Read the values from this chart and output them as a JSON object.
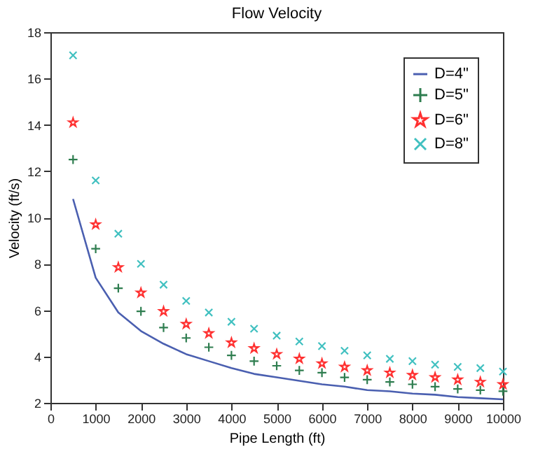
{
  "chart_data": {
    "type": "scatter",
    "title": "Flow Velocity",
    "xlabel": "Pipe Length (ft)",
    "ylabel": "Velocity (ft/s)",
    "x": [
      500,
      1000,
      1500,
      2000,
      2500,
      3000,
      3500,
      4000,
      4500,
      5000,
      5500,
      6000,
      6500,
      7000,
      7500,
      8000,
      8500,
      9000,
      9500,
      10000
    ],
    "series": [
      {
        "name": "D=4\"",
        "type": "line",
        "color": "#4a5fb0",
        "marker": "none",
        "values": [
          10.8,
          7.4,
          5.9,
          5.1,
          4.55,
          4.1,
          3.8,
          3.5,
          3.25,
          3.1,
          2.95,
          2.8,
          2.7,
          2.55,
          2.5,
          2.4,
          2.35,
          2.25,
          2.2,
          2.15
        ]
      },
      {
        "name": "D=5\"",
        "color": "#2e7d4f",
        "marker": "cross",
        "values": [
          12.5,
          8.65,
          6.95,
          5.95,
          5.25,
          4.8,
          4.4,
          4.05,
          3.8,
          3.6,
          3.4,
          3.3,
          3.1,
          3.0,
          2.9,
          2.8,
          2.7,
          2.6,
          2.55,
          2.5
        ]
      },
      {
        "name": "D=6\"",
        "color": "#ff3030",
        "marker": "star",
        "values": [
          14.1,
          9.7,
          7.85,
          6.75,
          5.95,
          5.4,
          5.0,
          4.6,
          4.35,
          4.1,
          3.9,
          3.7,
          3.55,
          3.4,
          3.3,
          3.2,
          3.1,
          3.0,
          2.9,
          2.8
        ]
      },
      {
        "name": "D=8\"",
        "color": "#40c0c0",
        "marker": "x",
        "values": [
          17.0,
          11.6,
          9.3,
          8.0,
          7.1,
          6.4,
          5.9,
          5.5,
          5.2,
          4.9,
          4.65,
          4.45,
          4.25,
          4.05,
          3.9,
          3.8,
          3.65,
          3.55,
          3.5,
          3.35
        ]
      }
    ],
    "xlim": [
      0,
      10000
    ],
    "xticks": [
      0,
      1000,
      2000,
      3000,
      4000,
      5000,
      6000,
      7000,
      8000,
      9000,
      10000
    ],
    "ylim": [
      2,
      18
    ],
    "yticks": [
      2,
      4,
      6,
      8,
      10,
      12,
      14,
      16,
      18
    ],
    "legend": "top right"
  }
}
